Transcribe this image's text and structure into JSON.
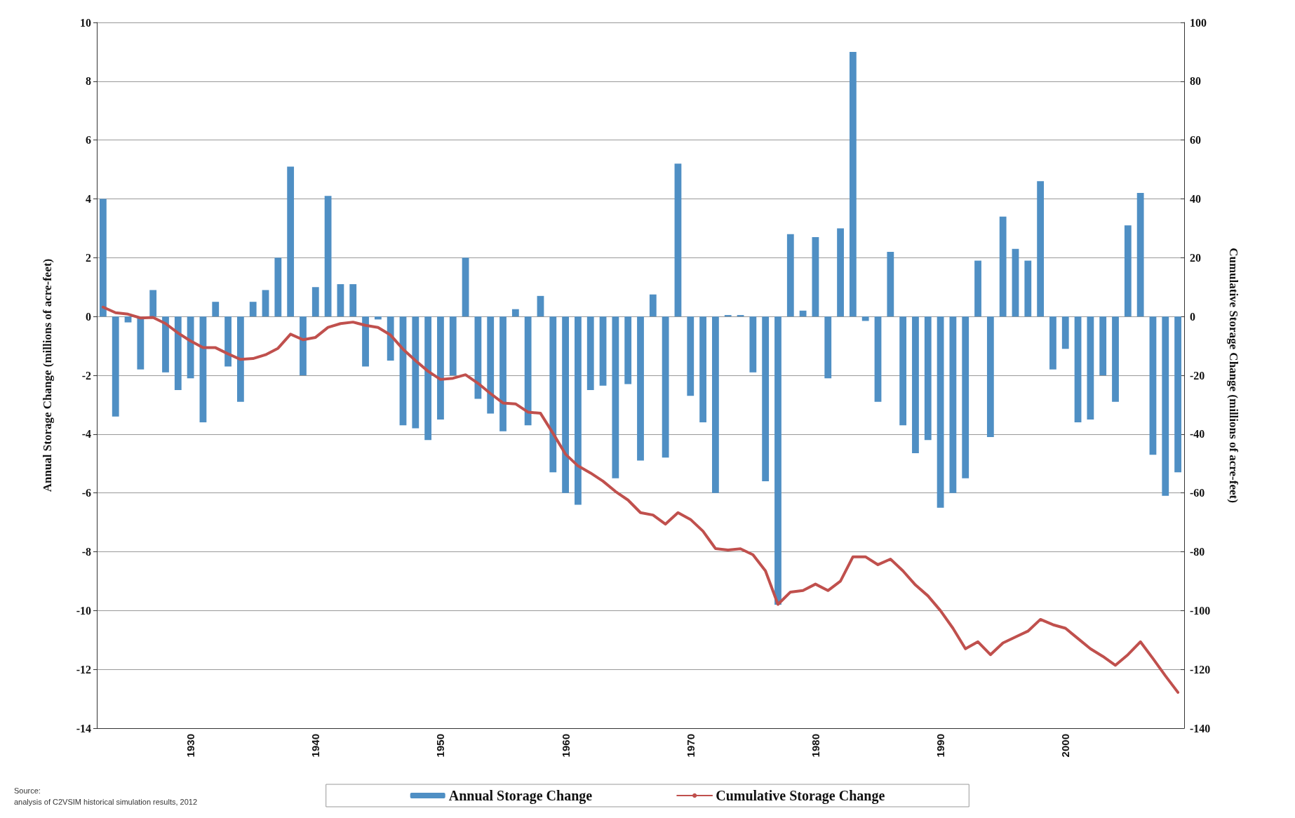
{
  "chart_data": {
    "type": "bar",
    "ylabel": "Annual Storage Change (millions of acre-feet)",
    "y2label": "Cumulative Storage Change (millions of acre-feet)",
    "categories": [
      null,
      null,
      null,
      null,
      null,
      null,
      null,
      "1930",
      null,
      null,
      null,
      null,
      null,
      null,
      null,
      null,
      null,
      "1940",
      null,
      null,
      null,
      null,
      null,
      null,
      null,
      null,
      null,
      "1950",
      null,
      null,
      null,
      null,
      null,
      null,
      null,
      null,
      null,
      "1960",
      null,
      null,
      null,
      null,
      null,
      null,
      null,
      null,
      null,
      "1970",
      null,
      null,
      null,
      null,
      null,
      null,
      null,
      null,
      null,
      "1980",
      null,
      null,
      null,
      null,
      null,
      null,
      null,
      null,
      null,
      "1990",
      null,
      null,
      null,
      null,
      null,
      null,
      null,
      null,
      null,
      "2000",
      null,
      null,
      null,
      null,
      null,
      null,
      null,
      null,
      null
    ],
    "series": [
      {
        "name": "Annual Storage Change",
        "color": "#4f8fc4",
        "values": [
          4.0,
          -3.4,
          -0.2,
          -1.8,
          0.9,
          -1.9,
          -2.5,
          -2.1,
          -3.6,
          0.5,
          -1.7,
          -2.9,
          0.5,
          0.9,
          2.0,
          5.1,
          -2.0,
          1.0,
          4.1,
          1.1,
          1.1,
          -1.7,
          -0.1,
          -1.5,
          -3.7,
          -3.8,
          -4.2,
          -3.5,
          -2.0,
          2.0,
          -2.8,
          -3.3,
          -3.9,
          0.25,
          -3.7,
          0.7,
          -5.3,
          -6.0,
          -6.4,
          -2.5,
          -2.35,
          -5.5,
          -2.3,
          -4.9,
          0.75,
          -4.8,
          5.2,
          -2.7,
          -3.6,
          -6.0,
          0.05,
          0.05,
          -1.9,
          -5.6,
          -9.8,
          2.8,
          0.2,
          2.7,
          -2.1,
          3.0,
          9.0,
          -0.15,
          -2.9,
          2.2,
          -3.7,
          -4.65,
          -4.2,
          -6.5,
          -6.0,
          -5.5,
          1.9,
          -4.1,
          3.4,
          2.3,
          1.9,
          4.6,
          -1.8,
          -1.1,
          -3.6,
          -3.5,
          -2.0,
          -2.9,
          3.1,
          4.2,
          -4.7,
          -6.1,
          -5.3
        ]
      },
      {
        "name": "Cumulative Storage Change",
        "type": "line",
        "axis": "y2",
        "color": "#c0504d",
        "values": [
          3.2,
          1.3,
          0.8,
          -0.5,
          -0.3,
          -2.4,
          -5.6,
          -8.3,
          -10.6,
          -10.6,
          -12.7,
          -14.6,
          -14.3,
          -13,
          -10.8,
          -6,
          -7.9,
          -7.1,
          -3.7,
          -2.4,
          -1.9,
          -3,
          -3.7,
          -6.3,
          -11.1,
          -15,
          -18.6,
          -21.4,
          -21,
          -19.8,
          -22.7,
          -26.2,
          -29.4,
          -29.7,
          -32.5,
          -32.9,
          -39.7,
          -46.8,
          -50.8,
          -53.2,
          -56,
          -59.5,
          -62.4,
          -66.7,
          -67.5,
          -70.6,
          -66.7,
          -69,
          -73,
          -78.9,
          -79.4,
          -79,
          -81,
          -86.5,
          -97.9,
          -93.7,
          -93.2,
          -91,
          -93.2,
          -90,
          -81.7,
          -81.7,
          -84.4,
          -82.5,
          -86.5,
          -91.3,
          -95,
          -100,
          -106,
          -113,
          -110.6,
          -115,
          -111,
          -109,
          -107,
          -103,
          -104.8,
          -106,
          -109.5,
          -113,
          -115.6,
          -118.6,
          -115,
          -110.6,
          -116.3,
          -122.2,
          -127.8
        ]
      }
    ],
    "ylim": [
      -14,
      10
    ],
    "yticks": [
      -14,
      -12,
      -10,
      -8,
      -6,
      -4,
      -2,
      0,
      2,
      4,
      6,
      8,
      10
    ],
    "y2lim": [
      -140,
      100
    ],
    "y2ticks": [
      -140,
      -120,
      -100,
      -80,
      -60,
      -40,
      -20,
      0,
      20,
      40,
      60,
      80,
      100
    ],
    "grid": "y",
    "legend": "bottom",
    "marker": "none",
    "line_style": "solid",
    "annotations": [
      "Source:",
      "analysis of C2VSIM historical simulation results, 2012"
    ]
  }
}
